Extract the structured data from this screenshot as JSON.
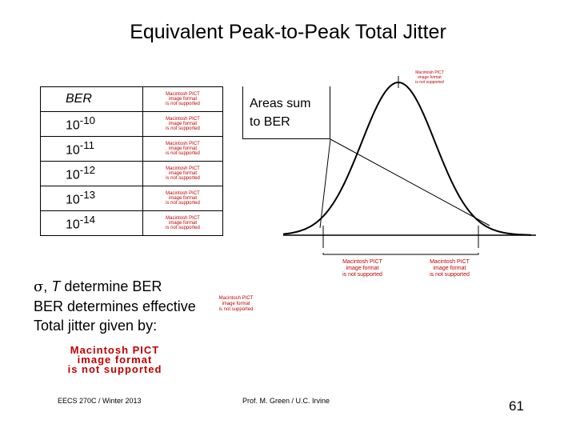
{
  "title": "Equivalent Peak-to-Peak Total Jitter",
  "table": {
    "header": "BER",
    "rows": [
      {
        "mantissa": "10",
        "exp": "-10"
      },
      {
        "mantissa": "10",
        "exp": "-11"
      },
      {
        "mantissa": "10",
        "exp": "-12"
      },
      {
        "mantissa": "10",
        "exp": "-13"
      },
      {
        "mantissa": "10",
        "exp": "-14"
      }
    ]
  },
  "pict_placeholder": {
    "line1": "Macintosh PICT",
    "line2": "image format",
    "line3": "is not supported"
  },
  "callout": {
    "line1": "Areas sum",
    "line2": "to BER"
  },
  "bullets": {
    "line1_sigma": "σ",
    "line1_sep": ", ",
    "line1_T": "T",
    "line1_rest": " determine BER",
    "line2": "BER determines effective",
    "line3": "Total jitter given by:"
  },
  "footer": {
    "left": "EECS 270C / Winter 2013",
    "center": "Prof. M. Green / U.C. Irvine",
    "page": "61"
  },
  "colors": {
    "pict_text": "#c00000",
    "ink": "#000000"
  }
}
